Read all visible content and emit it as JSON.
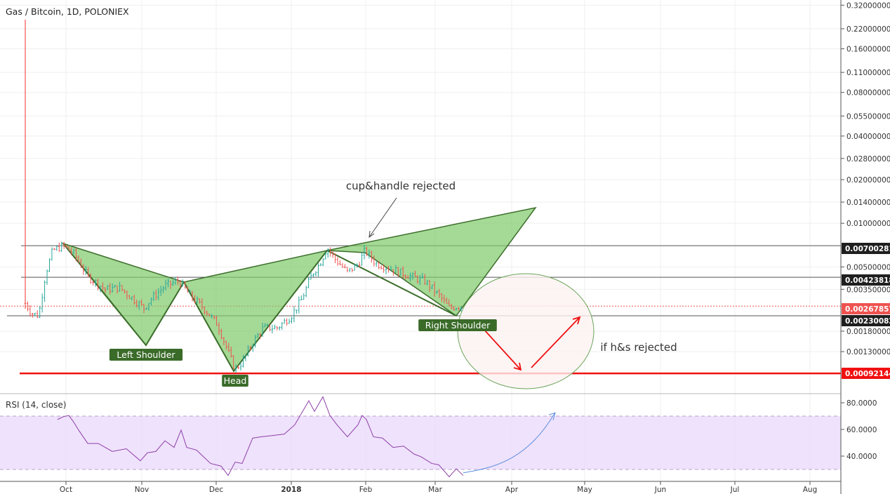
{
  "chart_data": [
    {
      "type": "candlestick",
      "title": "Gas / Bitcoin, 1D, POLONIEX",
      "scale": "log",
      "ylim": [
        0.00078,
        0.34
      ],
      "y_ticks": [
        "0.32000000",
        "0.22000000",
        "0.16000000",
        "0.11000000",
        "0.08000000",
        "0.05500000",
        "0.04000000",
        "0.02800000",
        "0.02000000",
        "0.01400000",
        "0.01000000",
        "0.00500000",
        "0.00350000",
        "0.00180000",
        "0.00130000"
      ],
      "x_ticks": [
        "Oct",
        "Nov",
        "Dec",
        "2018",
        "Feb",
        "Mar",
        "Apr",
        "May",
        "Jun",
        "Jul",
        "Aug"
      ],
      "grid": true,
      "price_tags": [
        {
          "value": "0.00700281",
          "color": "#1f1f1f"
        },
        {
          "value": "0.00423818",
          "color": "#1f1f1f"
        },
        {
          "value": "0.00267857",
          "color": "#ef5350"
        },
        {
          "value": "0.00230082",
          "color": "#1f1f1f"
        },
        {
          "value": "0.00092144",
          "color": "#f01010"
        }
      ],
      "horizontal_lines": [
        {
          "price": 0.007,
          "color": "#555555"
        },
        {
          "price": 0.00424,
          "color": "#555555"
        },
        {
          "price": 0.0023,
          "color": "#555555"
        },
        {
          "price": 0.00268,
          "color": "#ef5350",
          "style": "dotted"
        },
        {
          "price": 0.00092,
          "color": "#f01010"
        }
      ],
      "annotations": {
        "left_shoulder": "Left Shoulder",
        "head": "Head",
        "right_shoulder": "Right Shoulder",
        "cup_handle": "cup&handle rejected",
        "hs_rejected": "if h&s rejected"
      },
      "pattern_color": "#7fc96a",
      "up_color": "#26a69a",
      "down_color": "#ef5350"
    },
    {
      "type": "line",
      "title": "RSI (14, close)",
      "ylim": [
        22,
        86
      ],
      "y_ticks": [
        "80.0000",
        "60.0000",
        "40.0000"
      ],
      "band": [
        30,
        70
      ],
      "band_color": "#e9d8fb",
      "line_color": "#8e3fa8",
      "projection_color": "#5b8fe0"
    }
  ]
}
